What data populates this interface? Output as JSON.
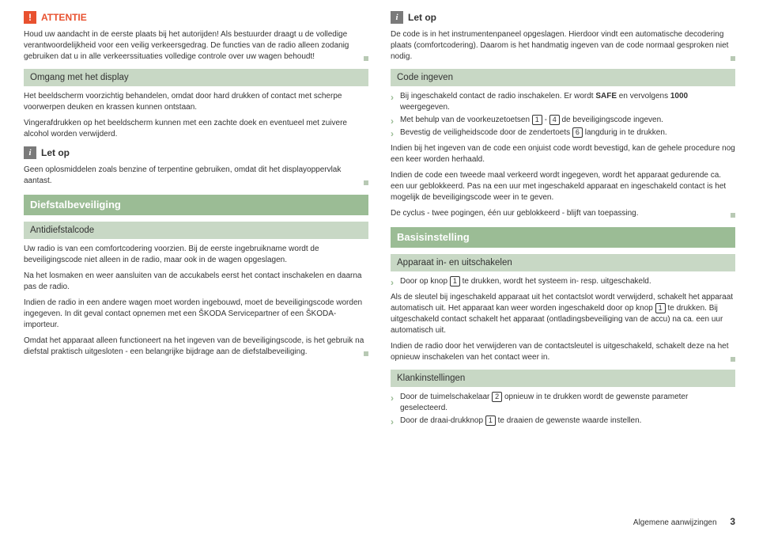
{
  "left": {
    "attentie": {
      "title": "ATTENTIE",
      "body": "Houd uw aandacht in de eerste plaats bij het autorijden! Als bestuurder draagt u de volledige verantwoordelijkheid voor een veilig verkeersgedrag. De functies van de radio alleen zodanig gebruiken dat u in alle verkeerssituaties volledige controle over uw wagen behoudt!"
    },
    "omgang": {
      "title": "Omgang met het display",
      "p1": "Het beeldscherm voorzichtig behandelen, omdat door hard drukken of contact met scherpe voorwerpen deuken en krassen kunnen ontstaan.",
      "p2": "Vingerafdrukken op het beeldscherm kunnen met een zachte doek en eventueel met zuivere alcohol worden verwijderd."
    },
    "letop": {
      "title": "Let op",
      "body": "Geen oplosmiddelen zoals benzine of terpentine gebruiken, omdat dit het displayoppervlak aantast."
    },
    "diefstal": {
      "title": "Diefstalbeveiliging"
    },
    "antidief": {
      "title": "Antidiefstalcode",
      "p1": "Uw radio is van een comfortcodering voorzien. Bij de eerste ingebruikname wordt de beveiligingscode niet alleen in de radio, maar ook in de wagen opgeslagen.",
      "p2": "Na het losmaken en weer aansluiten van de accukabels eerst het contact inschakelen en daarna pas de radio.",
      "p3": "Indien de radio in een andere wagen moet worden ingebouwd, moet de beveiligingscode worden ingegeven. In dit geval contact opnemen met een ŠKODA Servicepartner of een ŠKODA-importeur.",
      "p4": "Omdat het apparaat alleen functioneert na het ingeven van de beveiligingscode, is het gebruik na diefstal praktisch uitgesloten - een belangrijke bijdrage aan de diefstalbeveiliging."
    }
  },
  "right": {
    "letop": {
      "title": "Let op",
      "body": "De code is in het instrumentenpaneel opgeslagen. Hierdoor vindt een automatische decodering plaats (comfortcodering). Daarom is het handmatig ingeven van de code normaal gesproken niet nodig."
    },
    "code": {
      "title": "Code ingeven",
      "b1a": "Bij ingeschakeld contact de radio inschakelen. Er wordt ",
      "b1b": "SAFE",
      "b1c": " en vervolgens ",
      "b1d": "1000",
      "b1e": " weergegeven.",
      "b2a": "Met behulp van de voorkeuzetoetsen ",
      "b2b": " - ",
      "b2c": " de beveiligingscode ingeven.",
      "b3a": "Bevestig de veiligheidscode door de zendertoets ",
      "b3b": " langdurig in te drukken.",
      "p1": "Indien bij het ingeven van de code een onjuist code wordt bevestigd, kan de gehele procedure nog een keer worden herhaald.",
      "p2": "Indien de code een tweede maal verkeerd wordt ingegeven, wordt het apparaat gedurende ca. een uur geblokkeerd. Pas na een uur met ingeschakeld apparaat en ingeschakeld contact is het mogelijk de beveiligingscode weer in te geven.",
      "p3": "De cyclus - twee pogingen, één uur geblokkeerd - blijft van toepassing."
    },
    "basis": {
      "title": "Basisinstelling"
    },
    "apparaat": {
      "title": "Apparaat in- en uitschakelen",
      "b1a": "Door op knop ",
      "b1b": " te drukken, wordt het systeem in- resp. uitgeschakeld.",
      "p1a": "Als de sleutel bij ingeschakeld apparaat uit het contactslot wordt verwijderd, schakelt het apparaat automatisch uit. Het apparaat kan weer worden ingeschakeld door op knop ",
      "p1b": " te drukken. Bij uitgeschakeld contact schakelt het apparaat (ontladingsbeveiliging van de accu) na ca. een uur automatisch uit.",
      "p2": "Indien de radio door het verwijderen van de contactsleutel is uitgeschakeld, schakelt deze na het opnieuw inschakelen van het contact weer in."
    },
    "klank": {
      "title": "Klankinstellingen",
      "b1a": "Door de tuimelschakelaar ",
      "b1b": " opnieuw in te drukken wordt de gewenste parameter geselecteerd.",
      "b2a": "Door de draai-drukknop ",
      "b2b": " te draaien de gewenste waarde instellen."
    }
  },
  "keys": {
    "k1": "1",
    "k4": "4",
    "k6": "6",
    "k2": "2",
    "kpwr": "1"
  },
  "footer": {
    "text": "Algemene aanwijzingen",
    "page": "3"
  }
}
